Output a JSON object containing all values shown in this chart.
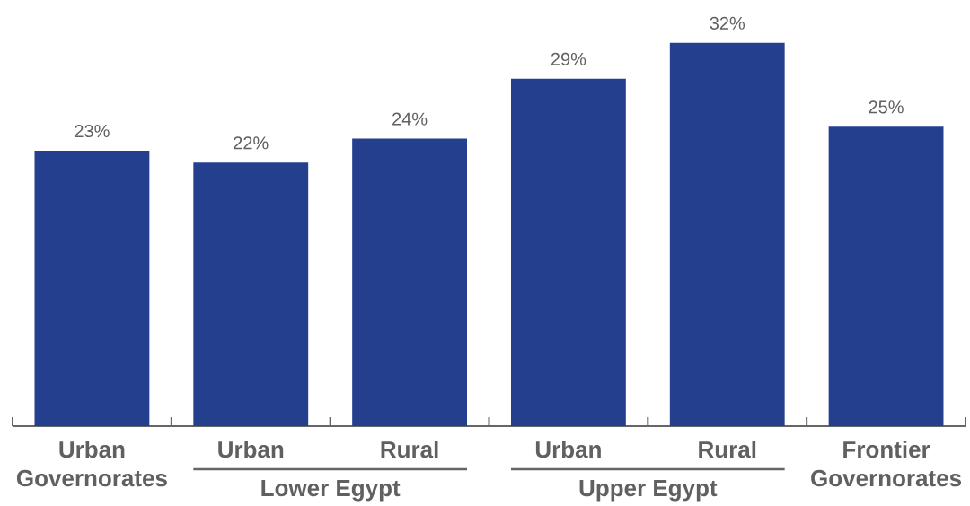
{
  "chart_data": {
    "type": "bar",
    "categories": [
      "Urban Governorates",
      "Urban",
      "Rural",
      "Urban",
      "Rural",
      "Frontier Governorates"
    ],
    "values": [
      23,
      22,
      24,
      29,
      32,
      25
    ],
    "value_labels": [
      "23%",
      "22%",
      "24%",
      "29%",
      "32%",
      "25%"
    ],
    "color": "#243f8e",
    "annotations": [
      "Lower Egypt",
      "Upper Egypt"
    ]
  }
}
